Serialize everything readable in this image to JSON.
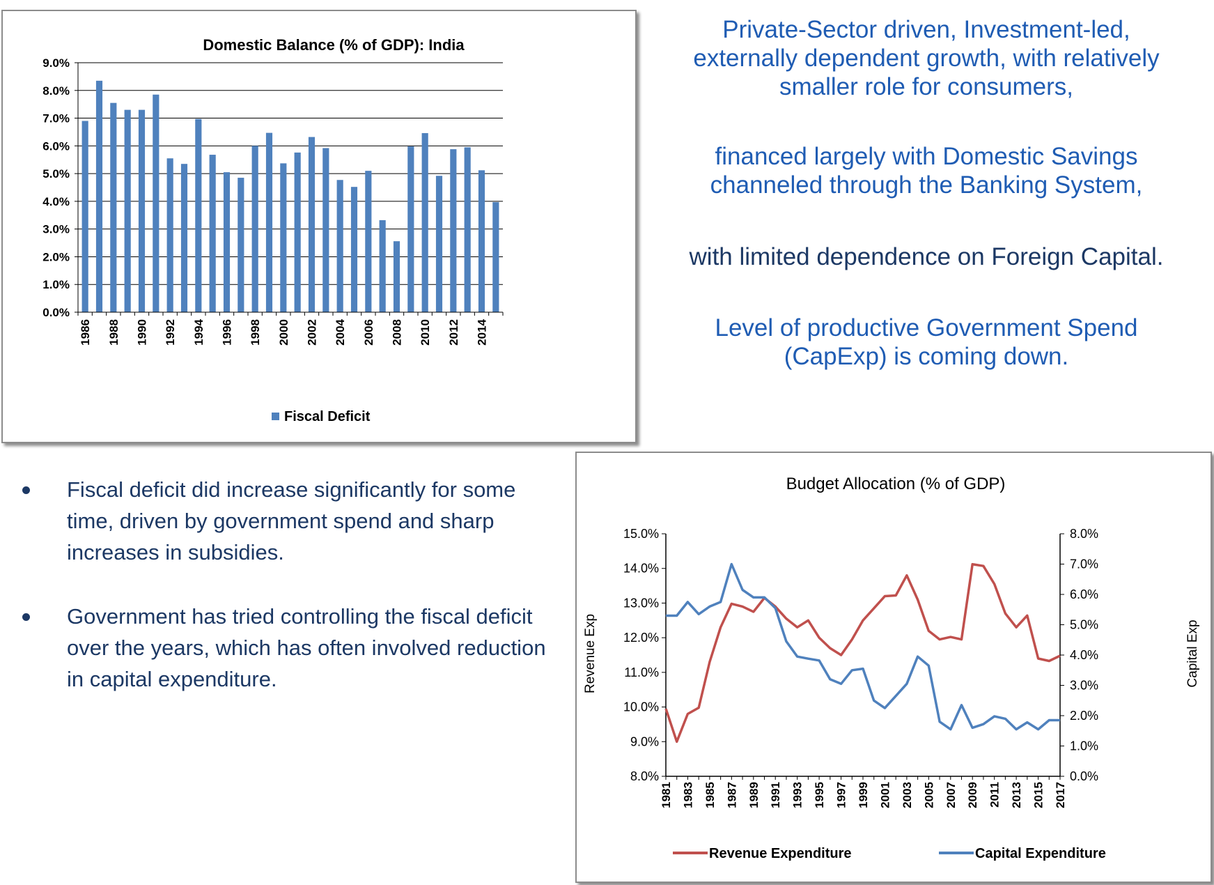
{
  "right_text": {
    "para1": [
      "Private-Sector driven, Investment-led,",
      "externally dependent growth, with relatively",
      "smaller role for consumers,"
    ],
    "para2": [
      "financed largely with Domestic Savings",
      "channeled through the Banking System,"
    ],
    "para3": [
      "with limited dependence on Foreign Capital."
    ],
    "para4": [
      "Level of productive Government Spend",
      "(CapExp) is coming down."
    ]
  },
  "bullets": [
    "Fiscal deficit did increase significantly for some time, driven by government spend and sharp increases in subsidies.",
    "Government has tried controlling the fiscal deficit over the years, which has often involved reduction in capital expenditure."
  ],
  "colors": {
    "bar": "#4f81bd",
    "revenue": "#c0504d",
    "capital": "#4f81bd",
    "accent_text": "#1f5cb3",
    "dark_text": "#1c3864"
  },
  "chart_data": [
    {
      "type": "bar",
      "title": "Domestic Balance (% of GDP): India",
      "xlabel": "",
      "ylabel": "",
      "ylim": [
        0,
        9
      ],
      "y_ticks": [
        "0.0%",
        "1.0%",
        "2.0%",
        "3.0%",
        "4.0%",
        "5.0%",
        "6.0%",
        "7.0%",
        "8.0%",
        "9.0%"
      ],
      "x_tick_labels": [
        "1986",
        "1988",
        "1990",
        "1992",
        "1994",
        "1996",
        "1998",
        "2000",
        "2002",
        "2004",
        "2006",
        "2008",
        "2010",
        "2012",
        "2014"
      ],
      "categories": [
        1986,
        1987,
        1988,
        1989,
        1990,
        1991,
        1992,
        1993,
        1994,
        1995,
        1996,
        1997,
        1998,
        1999,
        2000,
        2001,
        2002,
        2003,
        2004,
        2005,
        2006,
        2007,
        2008,
        2009,
        2010,
        2011,
        2012,
        2013,
        2014,
        2015
      ],
      "series": [
        {
          "name": "Fiscal Deficit",
          "values": [
            6.9,
            8.35,
            7.55,
            7.3,
            7.3,
            7.85,
            5.55,
            5.35,
            6.97,
            5.68,
            5.05,
            4.85,
            6.0,
            6.47,
            5.37,
            5.76,
            6.32,
            5.92,
            4.77,
            4.52,
            5.1,
            3.32,
            2.56,
            5.98,
            6.46,
            4.92,
            5.88,
            5.95,
            5.12,
            3.97
          ]
        }
      ],
      "legend": "bottom",
      "grid": true
    },
    {
      "type": "line",
      "title": "Budget Allocation (% of GDP)",
      "ylabel": "Revenue Exp",
      "y2label": "Capital Exp",
      "ylim": [
        8,
        15
      ],
      "y2lim": [
        0,
        8
      ],
      "y_ticks": [
        "8.0%",
        "9.0%",
        "10.0%",
        "11.0%",
        "12.0%",
        "13.0%",
        "14.0%",
        "15.0%"
      ],
      "y2_ticks": [
        "0.0%",
        "1.0%",
        "2.0%",
        "3.0%",
        "4.0%",
        "5.0%",
        "6.0%",
        "7.0%",
        "8.0%"
      ],
      "x_tick_labels": [
        "1981",
        "1983",
        "1985",
        "1987",
        "1989",
        "1991",
        "1993",
        "1995",
        "1997",
        "1999",
        "2001",
        "2003",
        "2005",
        "2007",
        "2009",
        "2011",
        "2013",
        "2015",
        "2017"
      ],
      "x": [
        1981,
        1982,
        1983,
        1984,
        1985,
        1986,
        1987,
        1988,
        1989,
        1990,
        1991,
        1992,
        1993,
        1994,
        1995,
        1996,
        1997,
        1998,
        1999,
        2000,
        2001,
        2002,
        2003,
        2004,
        2005,
        2006,
        2007,
        2008,
        2009,
        2010,
        2011,
        2012,
        2013,
        2014,
        2015,
        2016,
        2017
      ],
      "series": [
        {
          "name": "Revenue Expenditure",
          "axis": "left",
          "values": [
            9.95,
            9.0,
            9.8,
            9.98,
            11.3,
            12.3,
            12.98,
            12.9,
            12.75,
            13.15,
            12.9,
            12.55,
            12.3,
            12.5,
            12.0,
            11.7,
            11.5,
            11.95,
            12.5,
            12.85,
            13.2,
            13.22,
            13.8,
            13.1,
            12.2,
            11.95,
            12.02,
            11.95,
            14.12,
            14.07,
            13.55,
            12.7,
            12.3,
            12.64,
            11.4,
            11.33,
            11.48
          ]
        },
        {
          "name": "Capital Expenditure",
          "axis": "right",
          "values": [
            5.3,
            5.3,
            5.75,
            5.35,
            5.6,
            5.75,
            7.0,
            6.15,
            5.9,
            5.9,
            5.55,
            4.45,
            3.95,
            3.88,
            3.82,
            3.2,
            3.05,
            3.5,
            3.55,
            2.5,
            2.25,
            2.65,
            3.05,
            3.95,
            3.65,
            1.8,
            1.55,
            2.35,
            1.6,
            1.72,
            1.98,
            1.9,
            1.55,
            1.78,
            1.55,
            1.85,
            1.85
          ]
        }
      ],
      "legend": "bottom",
      "grid": false
    }
  ]
}
